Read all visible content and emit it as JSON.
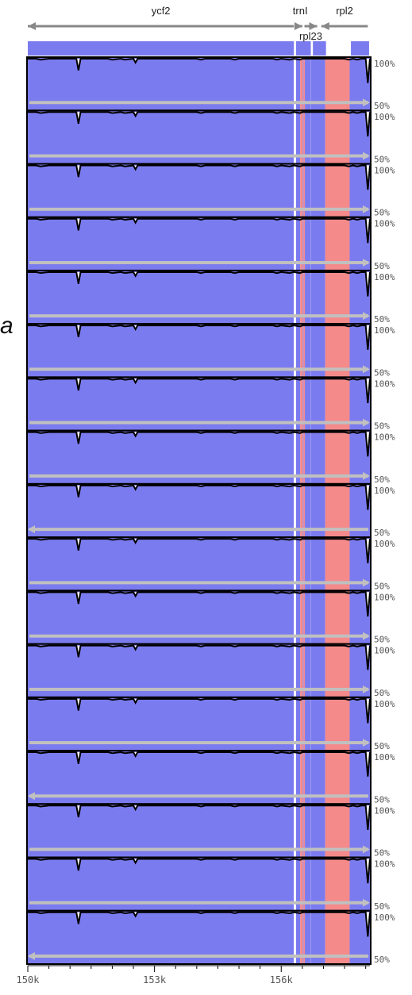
{
  "chart_data": {
    "type": "area",
    "x_ticks": [
      "150k",
      "153k",
      "156k"
    ],
    "x_tick_values": [
      150000,
      153000,
      156000
    ],
    "xlim": [
      150000,
      158100
    ],
    "y_axis_labels": {
      "top": "100%",
      "bottom": "50%"
    },
    "ylim": [
      50,
      100
    ],
    "track_count": 17,
    "side_label": "a",
    "track_direction": [
      "right",
      "right",
      "right",
      "right",
      "right",
      "right",
      "right",
      "right",
      "left",
      "right",
      "right",
      "right",
      "right",
      "left",
      "right",
      "right",
      "left"
    ],
    "genes": [
      {
        "name": "ycf2",
        "start": 150000,
        "end": 156300,
        "strand": "minus"
      },
      {
        "name": "trnI",
        "start": 156400,
        "end": 156500,
        "strand": "plus"
      },
      {
        "name": "rpl23",
        "start": 156550,
        "end": 156850,
        "strand": "plus"
      },
      {
        "name": "rpl2",
        "start": 156950,
        "end": 158050,
        "strand": "minus"
      }
    ],
    "regions": [
      {
        "type": "exon",
        "start": 150000,
        "end": 156300,
        "color": "#7b7bf0"
      },
      {
        "type": "gap",
        "start": 156300,
        "end": 156350,
        "color": "#ffffff"
      },
      {
        "type": "exon",
        "start": 156350,
        "end": 156450,
        "color": "#7b7bf0"
      },
      {
        "type": "utr",
        "start": 156450,
        "end": 156560,
        "color": "#f48a8a"
      },
      {
        "type": "exon",
        "start": 156560,
        "end": 157040,
        "color": "#7b7bf0"
      },
      {
        "type": "noncoding",
        "start": 157040,
        "end": 157620,
        "color": "#f48a8a"
      },
      {
        "type": "exon",
        "start": 157620,
        "end": 158100,
        "color": "#7b7bf0"
      }
    ],
    "identity_profile": {
      "x": [
        150000,
        150200,
        150300,
        150500,
        150700,
        151000,
        151150,
        151200,
        151250,
        151400,
        151500,
        151900,
        152000,
        152200,
        152300,
        152500,
        152550,
        152600,
        152800,
        153000,
        154000,
        154100,
        154200,
        154800,
        154900,
        155000,
        155800,
        155900,
        156000,
        156200,
        156300,
        156450,
        156500,
        157500,
        157600,
        157700,
        157800,
        157900,
        158000,
        158050,
        158100
      ],
      "y": [
        100,
        100,
        99,
        100,
        100,
        100,
        100,
        88,
        100,
        100,
        100,
        100,
        99,
        100,
        99,
        100,
        96,
        100,
        100,
        100,
        100,
        99,
        100,
        100,
        99,
        100,
        100,
        99,
        100,
        99,
        100,
        99,
        100,
        100,
        99,
        100,
        99,
        100,
        100,
        75,
        100
      ]
    },
    "colors": {
      "exon": "#7b7bf0",
      "noncoding": "#f48a8a",
      "profile": "#000000",
      "arrow": "#c0c0c0",
      "gene_arrow": "#888888"
    }
  }
}
